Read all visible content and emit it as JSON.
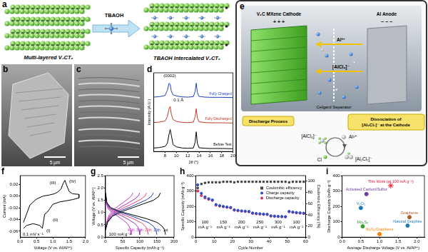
{
  "panel_labels": [
    "a",
    "b",
    "c",
    "d",
    "e",
    "f",
    "g",
    "h",
    "i"
  ],
  "diagrams": {
    "a": {
      "left_label": "Multi-layered V₂CTₓ",
      "arrow_label": "TBAOH",
      "right_label": "TBAOH Intercalated V₂CTₓ"
    },
    "b": {
      "scale_bar": "5 μm"
    },
    "c": {
      "scale_bar": "5 μm"
    },
    "e": {
      "cathode": "V₂C MXene Cathode",
      "anode": "Al Anode",
      "separator": "Celgard Separator",
      "ions": [
        "Al³⁺",
        "[AlCl₄]⁻"
      ],
      "process": "Discharge Process",
      "dissociation": "Dissociation of [Al₂Cl₇]⁻ at the Cathode",
      "species": [
        "Al³⁺",
        "[AlCl₄]⁻",
        "Cl",
        "[Al₂Cl₇]⁻"
      ],
      "positive": "+ + +",
      "negative": "− − −"
    }
  },
  "chart_data": [
    {
      "type": "line",
      "x_label": "2θ (°)",
      "y_label": "Intensity (A.U.)",
      "tick_labels": "x",
      "x": [
        6,
        7,
        8,
        8.4,
        8.7,
        8.9,
        9.1,
        9.4,
        10,
        11,
        12,
        13,
        13.3,
        13.5,
        13.7,
        14,
        15,
        16,
        18,
        20
      ],
      "xlim": [
        6,
        20
      ],
      "xticks": [
        8,
        10,
        12,
        14,
        16,
        18,
        20
      ],
      "ylim": [
        0,
        3.4
      ],
      "series": [
        {
          "name": "Fully Charged",
          "color": "#1f3fbf",
          "values": [
            2.35,
            2.37,
            2.42,
            2.65,
            2.95,
            2.9,
            2.6,
            2.45,
            2.4,
            2.36,
            2.35,
            2.37,
            2.6,
            2.95,
            2.55,
            2.38,
            2.35,
            2.34,
            2.34,
            2.33
          ]
        },
        {
          "name": "Fully Discharged",
          "color": "#c0392b",
          "values": [
            1.25,
            1.27,
            1.32,
            1.5,
            1.85,
            1.95,
            1.6,
            1.38,
            1.3,
            1.26,
            1.25,
            1.27,
            1.5,
            1.85,
            1.45,
            1.28,
            1.25,
            1.24,
            1.24,
            1.23
          ]
        },
        {
          "name": "Before Test",
          "color": "#000000",
          "values": [
            0.15,
            0.17,
            0.22,
            0.35,
            0.75,
            0.95,
            0.7,
            0.3,
            0.2,
            0.15,
            0.14,
            0.15,
            0.4,
            0.85,
            0.35,
            0.16,
            0.14,
            0.13,
            0.13,
            0.12
          ]
        }
      ],
      "annotations": [
        "(0002)",
        "0.1 Å"
      ]
    },
    {
      "type": "line",
      "x_label": "Voltage (V vs. Al/Al³⁺)",
      "y_label": "Current (mA)",
      "xlim": [
        0,
        2
      ],
      "xticks": [
        {
          "value": 0,
          "label": "0.0"
        },
        0.5,
        {
          "value": 1,
          "label": "1.0"
        },
        1.5,
        {
          "value": 2,
          "label": "2.0"
        }
      ],
      "ylim": [
        -0.07,
        0.035
      ],
      "yticks": [
        -0.06,
        -0.04,
        -0.02,
        {
          "value": 0,
          "label": "0.00"
        },
        0.02
      ],
      "series": [
        {
          "color": "#000000",
          "x": [
            0.1,
            0.3,
            0.5,
            0.7,
            0.9,
            1.05,
            1.15,
            1.25,
            1.32,
            1.37,
            1.42,
            1.5,
            1.6,
            1.8,
            1.8,
            1.6,
            1.4,
            1.2,
            1.0,
            0.9,
            0.82,
            0.75,
            0.68,
            0.6,
            0.4,
            0.2,
            0.1
          ],
          "values": [
            -0.045,
            -0.015,
            -0.005,
            0.0,
            0.002,
            0.004,
            0.007,
            0.012,
            0.022,
            0.027,
            0.019,
            0.008,
            0.004,
            0.003,
            -0.003,
            -0.006,
            -0.008,
            -0.01,
            -0.014,
            -0.022,
            -0.028,
            -0.031,
            -0.055,
            -0.05,
            -0.047,
            -0.05,
            -0.055
          ]
        }
      ],
      "annotations": [
        "(I)",
        "(II)",
        "(III)",
        "(IV)",
        "0.1 mV s⁻¹"
      ]
    },
    {
      "type": "line",
      "x_label": "Specific Capacity (mAh g⁻¹)",
      "y_label": "Voltage (V vs. Al/Al³⁺)",
      "xlim": [
        0,
        200
      ],
      "xticks": [
        0,
        50,
        100,
        150,
        200
      ],
      "ylim": [
        0,
        2.5
      ],
      "yticks": [
        {
          "value": 0,
          "label": "0.0"
        },
        0.5,
        {
          "value": 1,
          "label": "1.0"
        },
        1.5,
        {
          "value": 2,
          "label": "2.0"
        },
        2.5
      ],
      "series": [
        {
          "name": "1st",
          "color": "#000000",
          "x": [
            0,
            4,
            15,
            40,
            80,
            120,
            150,
            165,
            172,
            175,
            null,
            0,
            6,
            20,
            50,
            80,
            110,
            140,
            155,
            160
          ],
          "values": [
            1.8,
            1.4,
            1.2,
            1.05,
            0.9,
            0.75,
            0.6,
            0.45,
            0.3,
            0.1,
            null,
            0.3,
            0.6,
            0.85,
            1.05,
            1.2,
            1.35,
            1.5,
            1.65,
            1.8
          ]
        },
        {
          "name": "10th",
          "color": "#1f3fbf",
          "x": [
            0,
            4,
            14,
            38,
            72,
            100,
            127,
            140,
            147,
            150,
            null,
            0,
            6,
            19,
            43,
            72,
            96,
            120,
            134,
            140
          ],
          "values": [
            1.78,
            1.38,
            1.18,
            1.03,
            0.88,
            0.73,
            0.58,
            0.44,
            0.3,
            0.1,
            null,
            0.3,
            0.62,
            0.87,
            1.07,
            1.22,
            1.37,
            1.52,
            1.66,
            1.8
          ]
        },
        {
          "name": "20th",
          "color": "#e0407a",
          "x": [
            0,
            4,
            13,
            32,
            60,
            85,
            106,
            117,
            122,
            125,
            null,
            0,
            5,
            16,
            37,
            60,
            83,
            103,
            115,
            120
          ],
          "values": [
            1.77,
            1.36,
            1.16,
            1.02,
            0.87,
            0.72,
            0.57,
            0.43,
            0.29,
            0.1,
            null,
            0.31,
            0.63,
            0.88,
            1.08,
            1.24,
            1.39,
            1.54,
            1.67,
            1.8
          ]
        },
        {
          "name": "30th",
          "color": "#9b30c0",
          "x": [
            0,
            3,
            11,
            27,
            48,
            68,
            85,
            94,
            98,
            100,
            null,
            0,
            5,
            14,
            31,
            50,
            69,
            86,
            96,
            100
          ],
          "values": [
            1.76,
            1.35,
            1.15,
            1.0,
            0.86,
            0.71,
            0.56,
            0.42,
            0.28,
            0.1,
            null,
            0.32,
            0.64,
            0.9,
            1.1,
            1.26,
            1.41,
            1.56,
            1.68,
            1.8
          ]
        },
        {
          "name": "40th",
          "color": "#cc33cc",
          "x": [
            0,
            3,
            8,
            20,
            36,
            51,
            64,
            70,
            73,
            75,
            null,
            0,
            4,
            11,
            24,
            39,
            54,
            68,
            76,
            80
          ],
          "values": [
            1.75,
            1.34,
            1.14,
            0.99,
            0.85,
            0.7,
            0.55,
            0.41,
            0.27,
            0.1,
            null,
            0.33,
            0.65,
            0.92,
            1.12,
            1.28,
            1.43,
            1.58,
            1.69,
            1.8
          ]
        }
      ],
      "annotations": [
        "100 mA g⁻¹"
      ]
    },
    {
      "type": "line",
      "x_label": "Cycle Number",
      "y_label": "Specific Capacity (mAh g⁻¹)",
      "y2_label": "Coulombic Efficiency (%)",
      "x": [
        1,
        3,
        5,
        7,
        9,
        11,
        13,
        15,
        17,
        19,
        21,
        23,
        25,
        27,
        29,
        31,
        33,
        35,
        37,
        39,
        41,
        43,
        45,
        47,
        49,
        51,
        53,
        55,
        57,
        59
      ],
      "xlim": [
        0,
        60
      ],
      "xticks": [
        0,
        10,
        20,
        30,
        40,
        50,
        60
      ],
      "ylim": [
        0,
        400
      ],
      "yticks": [
        0,
        100,
        200,
        300,
        400
      ],
      "y2lim": [
        0,
        110
      ],
      "y2ticks": [
        0,
        20,
        40,
        60,
        80,
        100
      ],
      "legend": "top right",
      "series": [
        {
          "name": "Coulombic efficiency",
          "color": "#444444",
          "marker": "square",
          "line_style": "none",
          "axis": "y2",
          "values": [
            88,
            95,
            97,
            98,
            98,
            98,
            98,
            99,
            99,
            99,
            98,
            99,
            99,
            99,
            99,
            99,
            99,
            99,
            99,
            99,
            99,
            99,
            99,
            99,
            99,
            98,
            99,
            99,
            99,
            99
          ]
        },
        {
          "name": "Charge capacity",
          "color": "#2b50c8",
          "marker": "circle",
          "line_style": "none",
          "values": [
            340,
            285,
            262,
            250,
            242,
            212,
            205,
            200,
            196,
            193,
            178,
            174,
            171,
            169,
            167,
            157,
            154,
            152,
            150,
            149,
            139,
            137,
            135,
            134,
            133,
            168,
            163,
            160,
            158,
            156
          ]
        },
        {
          "name": "Discharge capacity",
          "color": "#e0306a",
          "marker": "circle",
          "line_style": "none",
          "values": [
            300,
            270,
            255,
            246,
            239,
            208,
            202,
            198,
            194,
            191,
            175,
            172,
            169,
            167,
            165,
            155,
            152,
            150,
            148,
            147,
            137,
            135,
            134,
            133,
            132,
            165,
            161,
            158,
            156,
            154
          ]
        }
      ],
      "annotations": [
        "100 mA g⁻¹",
        "150 mA g⁻¹",
        "200 mA g⁻¹",
        "250 mA g⁻¹",
        "300 mA g⁻¹",
        "100 mA g⁻¹"
      ]
    },
    {
      "type": "scatter",
      "x_label": "Average Discharge Voltage (V vs. Al/Al³⁺)",
      "y_label": "Discharge Capacity (mAh g⁻¹)",
      "xlim": [
        0,
        2.2
      ],
      "xticks": [
        {
          "value": 0,
          "label": "0.0"
        },
        0.5,
        {
          "value": 1,
          "label": "1.0"
        },
        1.5,
        {
          "value": 2,
          "label": "2.0"
        }
      ],
      "ylim": [
        0,
        400
      ],
      "yticks": [
        0,
        100,
        200,
        300,
        400
      ],
      "series": [
        {
          "name": "This Work (at 100 mA g⁻¹)",
          "color": "#e8112d",
          "marker": "star",
          "x": [
            1.3
          ],
          "values": [
            335
          ]
        },
        {
          "name": "Activated Carbon/Sulfur",
          "color": "#6a3d9a",
          "x": [
            0.65
          ],
          "values": [
            280
          ]
        },
        {
          "name": "V₂O₅",
          "color": "#1f78b4",
          "x": [
            0.5
          ],
          "values": [
            190
          ]
        },
        {
          "name": "Mo₆S₈",
          "color": "#33a02c",
          "x": [
            0.55
          ],
          "values": [
            70
          ]
        },
        {
          "name": "Ni₃S₂/Graphene",
          "color": "#ff7f00",
          "x": [
            1.0
          ],
          "values": [
            20
          ]
        },
        {
          "name": "Graphene",
          "color": "#b15928",
          "x": [
            1.8
          ],
          "values": [
            130
          ]
        },
        {
          "name": "Natural Graphite",
          "color": "#1f78b4",
          "x": [
            1.75
          ],
          "values": [
            75
          ]
        }
      ]
    }
  ]
}
